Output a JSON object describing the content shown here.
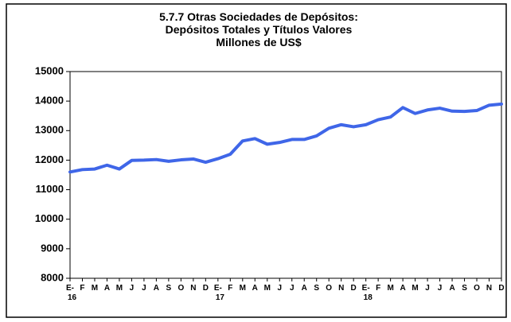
{
  "chart_data": {
    "type": "line",
    "title": [
      "5.7.7 Otras Sociedades de Depósitos:",
      "Depósitos Totales y Títulos Valores",
      "Millones de US$"
    ],
    "categories": [
      "E-",
      "F",
      "M",
      "A",
      "M",
      "J",
      "J",
      "A",
      "S",
      "O",
      "N",
      "D",
      "E-",
      "F",
      "M",
      "A",
      "M",
      "J",
      "J",
      "A",
      "S",
      "O",
      "N",
      "D",
      "E-",
      "F",
      "M",
      "A",
      "M",
      "J",
      "J",
      "A",
      "S",
      "O",
      "N",
      "D"
    ],
    "years": [
      "16",
      "17",
      "18"
    ],
    "series": [
      {
        "color": "#3f66e8",
        "values": [
          11600,
          11680,
          11700,
          11830,
          11700,
          11990,
          12000,
          12020,
          11960,
          12010,
          12040,
          11930,
          12050,
          12200,
          12650,
          12730,
          12540,
          12600,
          12700,
          12700,
          12820,
          13080,
          13200,
          13130,
          13200,
          13370,
          13460,
          13780,
          13580,
          13700,
          13760,
          13660,
          13650,
          13680,
          13860,
          13900
        ]
      }
    ],
    "ylim": [
      8000,
      15000
    ],
    "yticks": [
      8000,
      9000,
      10000,
      11000,
      12000,
      13000,
      14000,
      15000
    ],
    "grid": false
  }
}
